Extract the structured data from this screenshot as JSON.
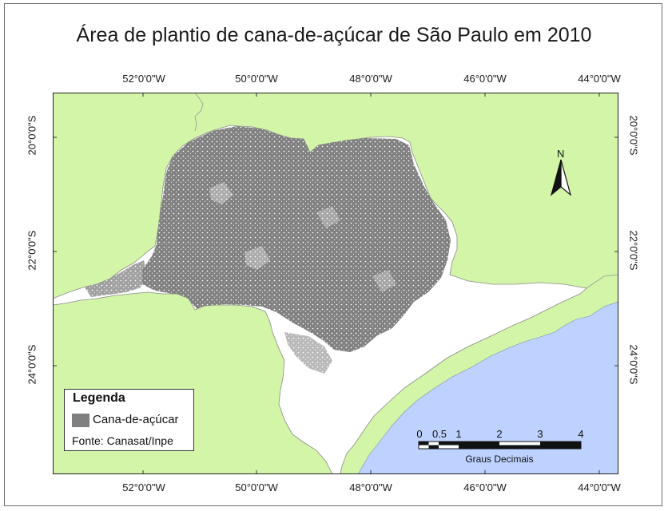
{
  "title": "Área de plantio de cana-de-açúcar de São Paulo em 2010",
  "longitude_labels": [
    "52°0'0\"W",
    "50°0'0\"W",
    "48°0'0\"W",
    "46°0'0\"W",
    "44°0'0\"W"
  ],
  "latitude_labels": [
    "20°0'0\"S",
    "22°0'0\"S",
    "24°0'0\"S"
  ],
  "legend": {
    "title": "Legenda",
    "item": "Cana-de-açúcar",
    "source": "Fonte: Canasat/Inpe"
  },
  "north_arrow": {
    "label": "N"
  },
  "scale_bar": {
    "ticks": [
      "0",
      "0.5",
      "1",
      "2",
      "3",
      "4"
    ],
    "unit": "Graus Decimais"
  },
  "colors": {
    "land": "#d3f5a8",
    "state": "#ffffff",
    "ocean": "#bed2ff",
    "sugarcane": "#808080"
  }
}
